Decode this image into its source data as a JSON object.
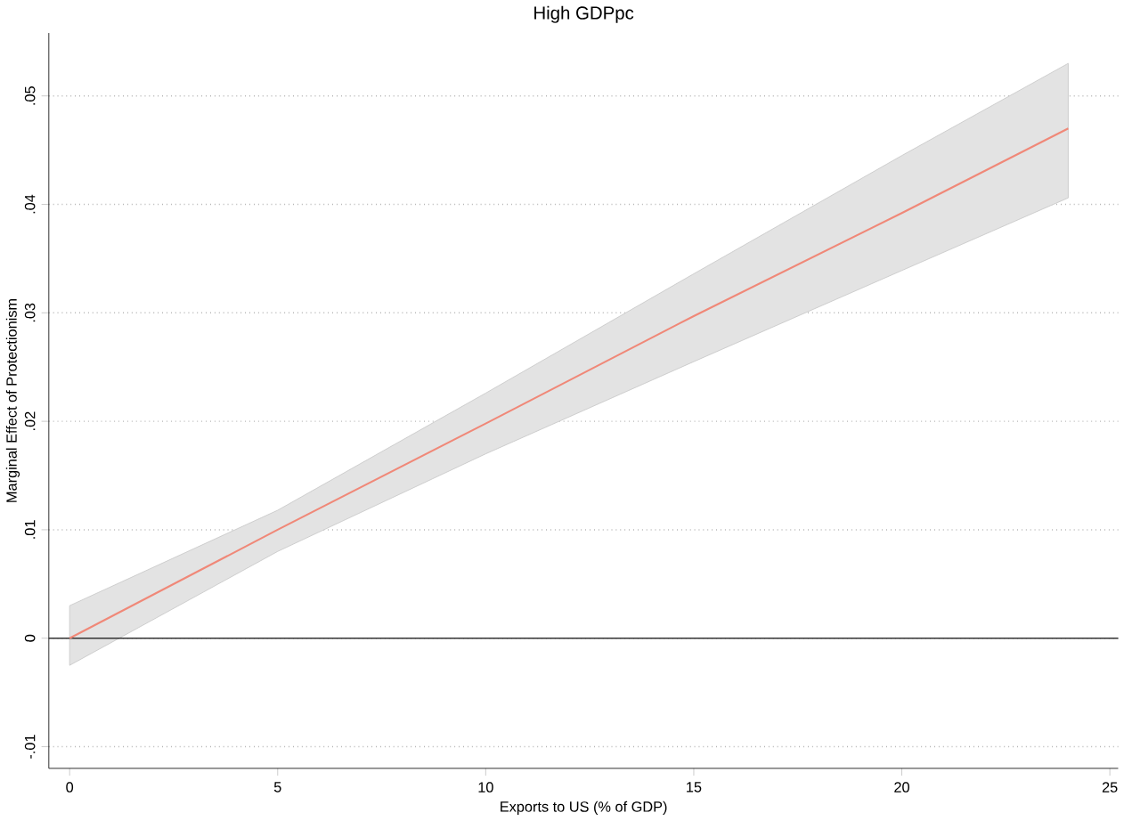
{
  "chart_data": {
    "type": "line",
    "title": "High GDPpc",
    "xlabel": "Exports to US (% of GDP)",
    "ylabel": "Marginal Effect of Protectionism",
    "x": [
      0,
      5,
      10,
      15,
      20,
      24
    ],
    "series": [
      {
        "color": "#f08878",
        "values": [
          0,
          0.01,
          0.0198,
          0.0297,
          0.0392,
          0.047
        ],
        "lower": [
          -0.0025,
          0.008,
          0.017,
          0.0255,
          0.0339,
          0.0406
        ],
        "upper": [
          0.003,
          0.0118,
          0.0226,
          0.0336,
          0.0445,
          0.053
        ]
      }
    ],
    "xlim": [
      -0.5,
      25.2
    ],
    "ylim": [
      -0.012,
      0.0558
    ],
    "xticks": [
      0,
      5,
      10,
      15,
      20,
      25
    ],
    "yticks": [
      {
        "value": -0.01,
        "label": "-.01"
      },
      {
        "value": 0,
        "label": "0"
      },
      {
        "value": 0.01,
        "label": ".01"
      },
      {
        "value": 0.02,
        "label": ".02"
      },
      {
        "value": 0.03,
        "label": ".03"
      },
      {
        "value": 0.04,
        "label": ".04"
      },
      {
        "value": 0.05,
        "label": ".05"
      }
    ],
    "grid": "y",
    "legend": false,
    "marker": "none",
    "line_style": "solid",
    "ref_lines": [
      {
        "axis": "y",
        "value": 0,
        "color": "#333333"
      }
    ]
  }
}
